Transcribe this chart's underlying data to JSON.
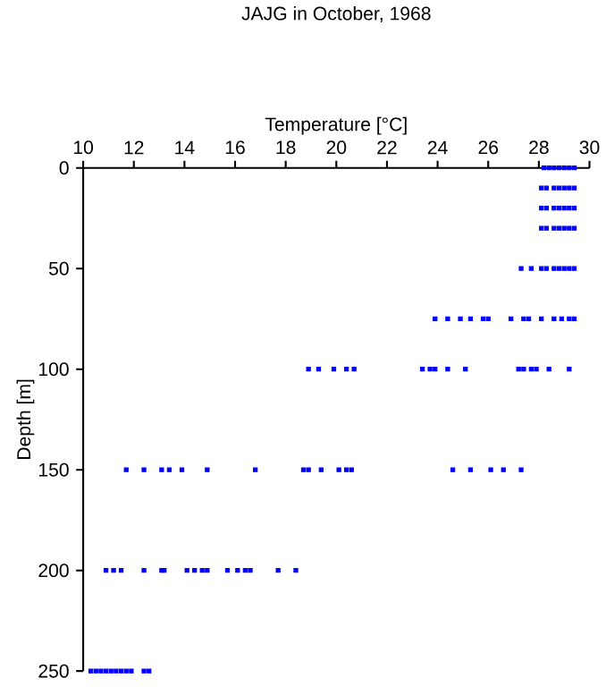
{
  "chart_data": {
    "type": "scatter",
    "title": "JAJG in October, 1968",
    "xlabel": "Temperature [°C]",
    "ylabel": "Depth [m]",
    "xlim": [
      10,
      30
    ],
    "xticks": [
      10,
      12,
      14,
      16,
      18,
      20,
      22,
      24,
      26,
      28,
      30
    ],
    "ylim": [
      250,
      0
    ],
    "yticks": [
      0,
      50,
      100,
      150,
      200,
      250
    ],
    "marker": "square",
    "grid": false,
    "series": [
      {
        "color": "#0000ff",
        "x": [
          28.2,
          28.4,
          28.6,
          28.8,
          29.0,
          29.2,
          29.4,
          28.1,
          28.3,
          28.6,
          28.8,
          29.0,
          29.2,
          29.4,
          28.1,
          28.3,
          28.6,
          28.8,
          29.0,
          29.2,
          29.4,
          28.1,
          28.3,
          28.6,
          28.8,
          29.0,
          29.2,
          29.4,
          27.3,
          27.7,
          28.1,
          28.3,
          28.6,
          28.8,
          29.0,
          29.2,
          29.4,
          23.9,
          24.4,
          24.9,
          25.3,
          25.8,
          26.0,
          26.9,
          27.4,
          27.6,
          28.1,
          28.6,
          28.9,
          29.2,
          29.4,
          18.9,
          19.3,
          19.9,
          20.4,
          20.7,
          23.4,
          23.7,
          23.9,
          24.4,
          25.1,
          27.2,
          27.4,
          27.7,
          27.9,
          28.4,
          29.2,
          11.7,
          12.4,
          13.1,
          13.4,
          13.9,
          14.9,
          16.8,
          18.7,
          18.9,
          19.4,
          20.1,
          20.4,
          20.6,
          24.6,
          25.3,
          26.1,
          26.6,
          27.3,
          10.9,
          11.2,
          11.5,
          12.4,
          13.1,
          13.2,
          14.1,
          14.4,
          14.7,
          14.9,
          15.7,
          16.1,
          16.4,
          16.6,
          17.7,
          18.4,
          10.3,
          10.5,
          10.7,
          10.9,
          11.1,
          11.3,
          11.5,
          11.7,
          11.9,
          12.4,
          12.6
        ],
        "values": [
          0,
          0,
          0,
          0,
          0,
          0,
          0,
          10,
          10,
          10,
          10,
          10,
          10,
          10,
          20,
          20,
          20,
          20,
          20,
          20,
          20,
          30,
          30,
          30,
          30,
          30,
          30,
          30,
          50,
          50,
          50,
          50,
          50,
          50,
          50,
          50,
          50,
          75,
          75,
          75,
          75,
          75,
          75,
          75,
          75,
          75,
          75,
          75,
          75,
          75,
          75,
          100,
          100,
          100,
          100,
          100,
          100,
          100,
          100,
          100,
          100,
          100,
          100,
          100,
          100,
          100,
          100,
          150,
          150,
          150,
          150,
          150,
          150,
          150,
          150,
          150,
          150,
          150,
          150,
          150,
          150,
          150,
          150,
          150,
          150,
          200,
          200,
          200,
          200,
          200,
          200,
          200,
          200,
          200,
          200,
          200,
          200,
          200,
          200,
          200,
          200,
          250,
          250,
          250,
          250,
          250,
          250,
          250,
          250,
          250,
          250,
          250
        ]
      }
    ]
  }
}
